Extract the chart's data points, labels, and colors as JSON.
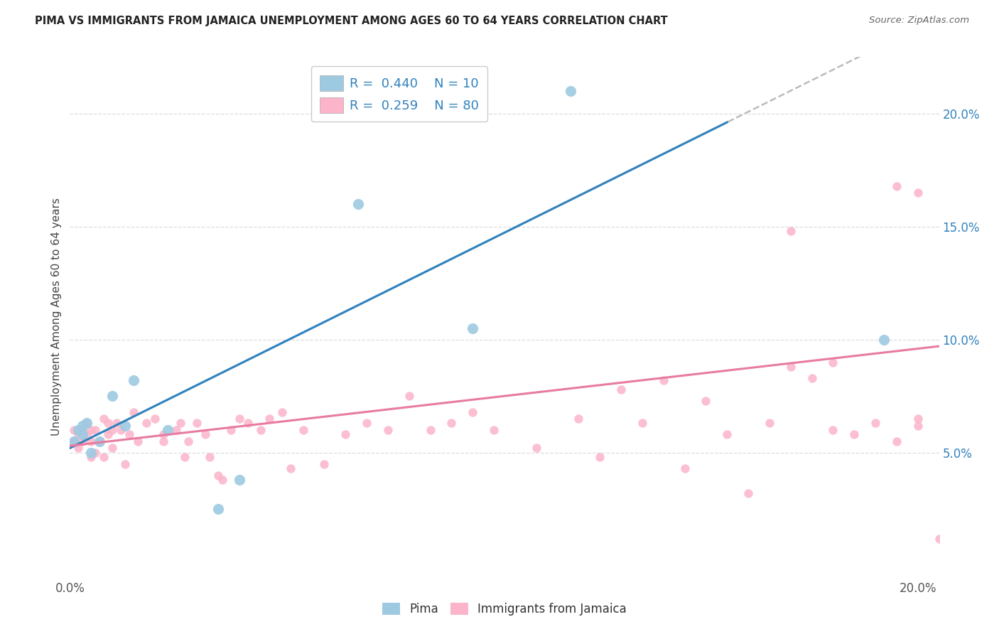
{
  "title": "PIMA VS IMMIGRANTS FROM JAMAICA UNEMPLOYMENT AMONG AGES 60 TO 64 YEARS CORRELATION CHART",
  "source": "Source: ZipAtlas.com",
  "ylabel": "Unemployment Among Ages 60 to 64 years",
  "xlim": [
    0.0,
    0.205
  ],
  "ylim": [
    -0.005,
    0.225
  ],
  "pima_x": [
    0.001,
    0.002,
    0.003,
    0.003,
    0.004,
    0.005,
    0.007,
    0.01,
    0.013,
    0.015,
    0.023,
    0.035,
    0.04,
    0.068,
    0.095,
    0.118,
    0.192
  ],
  "pima_y": [
    0.055,
    0.06,
    0.058,
    0.062,
    0.063,
    0.05,
    0.055,
    0.075,
    0.062,
    0.082,
    0.06,
    0.025,
    0.038,
    0.16,
    0.105,
    0.21,
    0.1
  ],
  "jamaica_x": [
    0.001,
    0.001,
    0.002,
    0.002,
    0.003,
    0.003,
    0.004,
    0.004,
    0.005,
    0.005,
    0.005,
    0.006,
    0.006,
    0.007,
    0.008,
    0.008,
    0.009,
    0.009,
    0.01,
    0.01,
    0.011,
    0.012,
    0.013,
    0.014,
    0.015,
    0.016,
    0.018,
    0.02,
    0.022,
    0.022,
    0.025,
    0.026,
    0.027,
    0.028,
    0.03,
    0.032,
    0.033,
    0.035,
    0.036,
    0.038,
    0.04,
    0.042,
    0.045,
    0.047,
    0.05,
    0.052,
    0.055,
    0.06,
    0.065,
    0.07,
    0.075,
    0.08,
    0.085,
    0.09,
    0.095,
    0.1,
    0.11,
    0.12,
    0.13,
    0.135,
    0.14,
    0.15,
    0.155,
    0.16,
    0.165,
    0.17,
    0.175,
    0.18,
    0.185,
    0.19,
    0.195,
    0.2,
    0.2,
    0.195,
    0.18,
    0.17,
    0.2,
    0.205,
    0.125,
    0.145
  ],
  "jamaica_y": [
    0.055,
    0.06,
    0.052,
    0.058,
    0.055,
    0.06,
    0.063,
    0.058,
    0.048,
    0.06,
    0.055,
    0.06,
    0.05,
    0.055,
    0.065,
    0.048,
    0.058,
    0.063,
    0.06,
    0.052,
    0.063,
    0.06,
    0.045,
    0.058,
    0.068,
    0.055,
    0.063,
    0.065,
    0.055,
    0.058,
    0.06,
    0.063,
    0.048,
    0.055,
    0.063,
    0.058,
    0.048,
    0.04,
    0.038,
    0.06,
    0.065,
    0.063,
    0.06,
    0.065,
    0.068,
    0.043,
    0.06,
    0.045,
    0.058,
    0.063,
    0.06,
    0.075,
    0.06,
    0.063,
    0.068,
    0.06,
    0.052,
    0.065,
    0.078,
    0.063,
    0.082,
    0.073,
    0.058,
    0.032,
    0.063,
    0.088,
    0.083,
    0.06,
    0.058,
    0.063,
    0.055,
    0.065,
    0.062,
    0.168,
    0.09,
    0.148,
    0.165,
    0.012,
    0.048,
    0.043
  ],
  "pima_color": "#9ecae1",
  "jamaica_color": "#fbb4c9",
  "trend_pima_solid_color": "#3182bd",
  "trend_pima_dashed_color": "#bbbbbb",
  "trend_jamaica_color": "#e87ba0",
  "pima_size": 120,
  "jamaica_size": 80,
  "right_tick_color": "#3182bd",
  "legend_text_color": "#3182bd",
  "grid_color": "#dddddd",
  "background_color": "#ffffff",
  "trend_pima_slope": 0.93,
  "trend_pima_intercept": 0.052,
  "trend_jamaica_slope": 0.215,
  "trend_jamaica_intercept": 0.053
}
